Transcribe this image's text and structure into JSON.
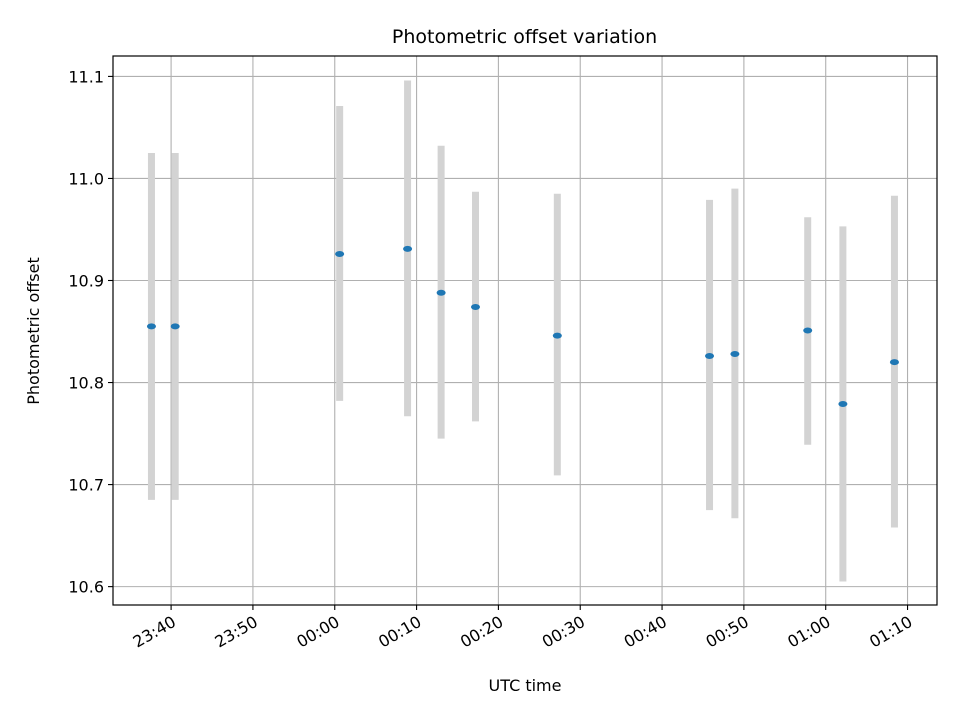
{
  "chart_data": {
    "type": "scatter",
    "title": "Photometric offset variation",
    "xlabel": "UTC time",
    "ylabel": "Photometric offset",
    "x_ticks": [
      "23:40",
      "23:50",
      "00:00",
      "00:10",
      "00:20",
      "00:30",
      "00:40",
      "00:50",
      "01:00",
      "01:10"
    ],
    "x_tick_minutes": [
      -20,
      -10,
      0,
      10,
      20,
      30,
      40,
      50,
      60,
      70
    ],
    "xlim_minutes": [
      -27.1,
      73.6
    ],
    "y_ticks": [
      "10.6",
      "10.7",
      "10.8",
      "10.9",
      "11.0",
      "11.1"
    ],
    "y_tick_values": [
      10.6,
      10.7,
      10.8,
      10.9,
      11.0,
      11.1
    ],
    "ylim": [
      10.582,
      11.12
    ],
    "grid": true,
    "point_color": "#1f77b4",
    "errorbar_color": "#d3d3d3",
    "points": [
      {
        "t": "23:37.6",
        "minutes": -22.4,
        "y": 10.855,
        "ylow": 10.685,
        "yhigh": 11.025
      },
      {
        "t": "23:40.5",
        "minutes": -19.5,
        "y": 10.855,
        "ylow": 10.685,
        "yhigh": 11.025
      },
      {
        "t": "00:00.6",
        "minutes": 0.6,
        "y": 10.926,
        "ylow": 10.782,
        "yhigh": 11.071
      },
      {
        "t": "00:08.9",
        "minutes": 8.9,
        "y": 10.931,
        "ylow": 10.767,
        "yhigh": 11.096
      },
      {
        "t": "00:13.0",
        "minutes": 13.0,
        "y": 10.888,
        "ylow": 10.745,
        "yhigh": 11.032
      },
      {
        "t": "00:17.2",
        "minutes": 17.2,
        "y": 10.874,
        "ylow": 10.762,
        "yhigh": 10.987
      },
      {
        "t": "00:27.2",
        "minutes": 27.2,
        "y": 10.846,
        "ylow": 10.709,
        "yhigh": 10.985
      },
      {
        "t": "00:45.8",
        "minutes": 45.8,
        "y": 10.826,
        "ylow": 10.675,
        "yhigh": 10.979
      },
      {
        "t": "00:48.9",
        "minutes": 48.9,
        "y": 10.828,
        "ylow": 10.667,
        "yhigh": 10.99
      },
      {
        "t": "00:57.8",
        "minutes": 57.8,
        "y": 10.851,
        "ylow": 10.739,
        "yhigh": 10.962
      },
      {
        "t": "01:02.1",
        "minutes": 62.1,
        "y": 10.779,
        "ylow": 10.605,
        "yhigh": 10.953
      },
      {
        "t": "01:08.4",
        "minutes": 68.4,
        "y": 10.82,
        "ylow": 10.658,
        "yhigh": 10.983
      }
    ]
  }
}
